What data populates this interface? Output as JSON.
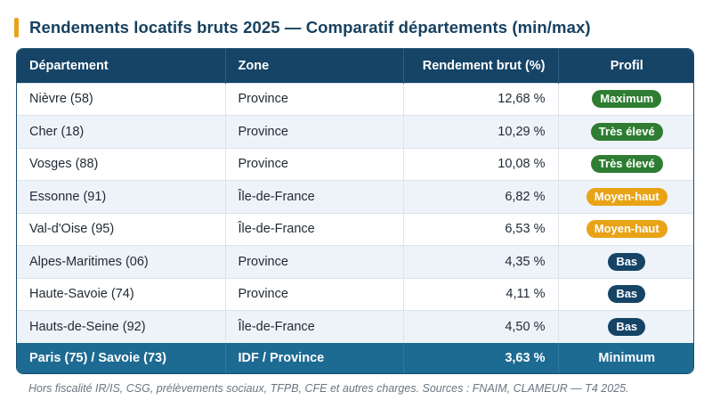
{
  "title": "Rendements locatifs bruts 2025 — Comparatif départements (min/max)",
  "headers": {
    "departement": "Département",
    "zone": "Zone",
    "rendement": "Rendement brut (%)",
    "profil": "Profil"
  },
  "rows": [
    {
      "departement": "Nièvre (58)",
      "zone": "Province",
      "rendement": "12,68 %",
      "profil": "Maximum",
      "badge_color": "#2e7d32"
    },
    {
      "departement": "Cher (18)",
      "zone": "Province",
      "rendement": "10,29 %",
      "profil": "Très élevé",
      "badge_color": "#2e7d32"
    },
    {
      "departement": "Vosges (88)",
      "zone": "Province",
      "rendement": "10,08 %",
      "profil": "Très élevé",
      "badge_color": "#2e7d32"
    },
    {
      "departement": "Essonne (91)",
      "zone": "Île-de-France",
      "rendement": "6,82 %",
      "profil": "Moyen-haut",
      "badge_color": "#e8a317"
    },
    {
      "departement": "Val-d'Oise (95)",
      "zone": "Île-de-France",
      "rendement": "6,53 %",
      "profil": "Moyen-haut",
      "badge_color": "#e8a317"
    },
    {
      "departement": "Alpes-Maritimes (06)",
      "zone": "Province",
      "rendement": "4,35 %",
      "profil": "Bas",
      "badge_color": "#154466"
    },
    {
      "departement": "Haute-Savoie (74)",
      "zone": "Province",
      "rendement": "4,11 %",
      "profil": "Bas",
      "badge_color": "#154466"
    },
    {
      "departement": "Hauts-de-Seine (92)",
      "zone": "Île-de-France",
      "rendement": "4,50 %",
      "profil": "Bas",
      "badge_color": "#154466"
    }
  ],
  "footer_row": {
    "departement": "Paris (75) / Savoie (73)",
    "zone": "IDF / Province",
    "rendement": "3,63 %",
    "profil": "Minimum"
  },
  "note": "Hors fiscalité IR/IS, CSG, prélèvements sociaux, TFPB, CFE et autres charges. Sources : FNAIM, CLAMEUR — T4 2025.",
  "colors": {
    "accent": "#e8a317",
    "header_bg": "#154466",
    "footer_bg": "#1d6a92",
    "green": "#2e7d32",
    "orange": "#e8a317",
    "navy": "#154466"
  }
}
